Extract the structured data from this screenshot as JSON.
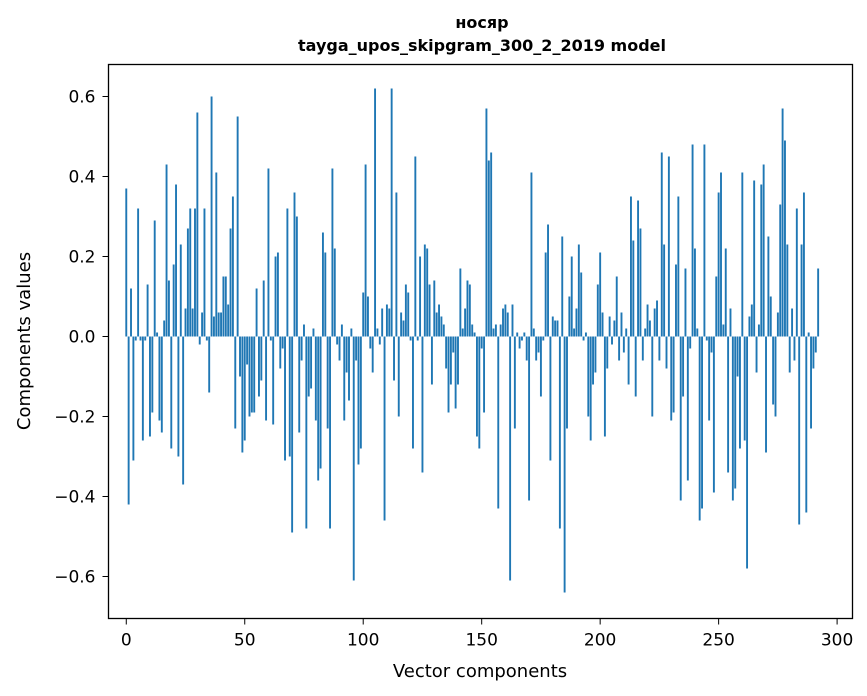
{
  "chart_data": {
    "type": "bar",
    "title": "носяр",
    "subtitle": "tayga_upos_skipgram_300_2_2019 model",
    "xlabel": "Vector components",
    "ylabel": "Components values",
    "xlim": [
      -7.5,
      306.5
    ],
    "ylim": [
      -0.705,
      0.68
    ],
    "xticks": [
      0,
      50,
      100,
      150,
      200,
      250,
      300
    ],
    "yticks": [
      -0.6,
      -0.4,
      -0.2,
      0.0,
      0.2,
      0.4,
      0.6
    ],
    "ytick_labels": [
      "−0.6",
      "−0.4",
      "−0.2",
      "0.0",
      "0.2",
      "0.4",
      "0.6"
    ],
    "bar_color": "#1f77b4",
    "x_start": 0,
    "values": [
      0.37,
      -0.42,
      0.12,
      -0.31,
      -0.01,
      0.32,
      -0.01,
      -0.26,
      -0.01,
      0.13,
      -0.25,
      -0.19,
      0.29,
      0.01,
      -0.21,
      -0.24,
      0.04,
      0.43,
      0.14,
      -0.28,
      0.18,
      0.38,
      -0.3,
      0.23,
      -0.37,
      0.07,
      0.27,
      0.32,
      0.07,
      0.32,
      0.56,
      -0.02,
      0.06,
      0.32,
      -0.01,
      -0.14,
      0.6,
      0.05,
      0.41,
      0.06,
      0.06,
      0.15,
      0.15,
      0.08,
      0.27,
      0.35,
      -0.23,
      0.55,
      -0.1,
      -0.29,
      -0.26,
      -0.07,
      -0.2,
      -0.19,
      -0.19,
      0.12,
      -0.15,
      -0.11,
      0.14,
      -0.21,
      0.42,
      -0.01,
      -0.22,
      0.2,
      0.21,
      -0.08,
      -0.03,
      -0.31,
      0.32,
      -0.3,
      -0.49,
      0.36,
      0.3,
      -0.24,
      -0.06,
      0.03,
      -0.48,
      -0.15,
      -0.13,
      0.02,
      -0.21,
      -0.36,
      -0.33,
      0.26,
      0.21,
      -0.23,
      -0.48,
      0.42,
      0.22,
      -0.02,
      -0.06,
      0.03,
      -0.21,
      -0.09,
      -0.16,
      0.02,
      -0.61,
      -0.06,
      -0.32,
      -0.28,
      0.11,
      0.43,
      0.1,
      -0.03,
      -0.09,
      0.62,
      0.02,
      -0.02,
      0.07,
      -0.46,
      0.08,
      0.07,
      0.62,
      -0.11,
      0.36,
      -0.2,
      0.06,
      0.04,
      0.13,
      0.11,
      -0.01,
      -0.28,
      0.45,
      -0.01,
      0.2,
      -0.34,
      0.23,
      0.22,
      0.13,
      -0.12,
      0.14,
      0.06,
      0.08,
      0.05,
      0.03,
      -0.08,
      -0.19,
      -0.12,
      -0.04,
      -0.18,
      -0.12,
      0.17,
      0.02,
      0.07,
      0.14,
      0.13,
      0.03,
      0.01,
      -0.25,
      -0.28,
      -0.03,
      -0.19,
      0.57,
      0.44,
      0.46,
      0.02,
      0.03,
      -0.43,
      0.03,
      0.07,
      0.08,
      0.06,
      -0.61,
      0.08,
      -0.23,
      0.01,
      -0.03,
      -0.01,
      0.01,
      -0.06,
      -0.41,
      0.41,
      0.02,
      -0.06,
      -0.04,
      -0.15,
      -0.01,
      0.21,
      0.28,
      -0.31,
      0.05,
      0.04,
      0.04,
      -0.48,
      0.25,
      -0.64,
      -0.23,
      0.1,
      0.2,
      0.02,
      0.07,
      0.23,
      0.16,
      -0.01,
      0.01,
      -0.2,
      -0.26,
      -0.12,
      -0.09,
      0.13,
      0.21,
      0.06,
      -0.25,
      -0.08,
      0.05,
      -0.02,
      0.04,
      0.15,
      -0.06,
      0.06,
      -0.04,
      0.02,
      -0.12,
      0.35,
      0.24,
      -0.15,
      0.34,
      0.27,
      -0.06,
      0.02,
      0.08,
      0.04,
      -0.2,
      0.07,
      0.09,
      -0.06,
      0.46,
      0.23,
      -0.08,
      0.45,
      -0.21,
      -0.19,
      0.18,
      0.35,
      -0.41,
      -0.15,
      0.17,
      -0.36,
      -0.03,
      0.48,
      0.22,
      0.02,
      -0.46,
      -0.43,
      0.48,
      -0.01,
      -0.21,
      -0.04,
      -0.39,
      0.15,
      0.36,
      0.41,
      0.03,
      0.22,
      -0.34,
      0.07,
      -0.41,
      -0.38,
      -0.1,
      -0.28,
      0.41,
      -0.26,
      -0.58,
      0.05,
      0.08,
      0.39,
      -0.09,
      0.03,
      0.38,
      0.43,
      -0.29,
      0.25,
      0.1,
      -0.17,
      -0.2,
      0.06,
      0.33,
      0.57,
      0.49,
      0.23,
      -0.09,
      0.07,
      -0.06,
      0.32,
      -0.47,
      0.23,
      0.36,
      -0.44,
      0.01,
      -0.23,
      -0.08,
      -0.04,
      0.17
    ]
  }
}
